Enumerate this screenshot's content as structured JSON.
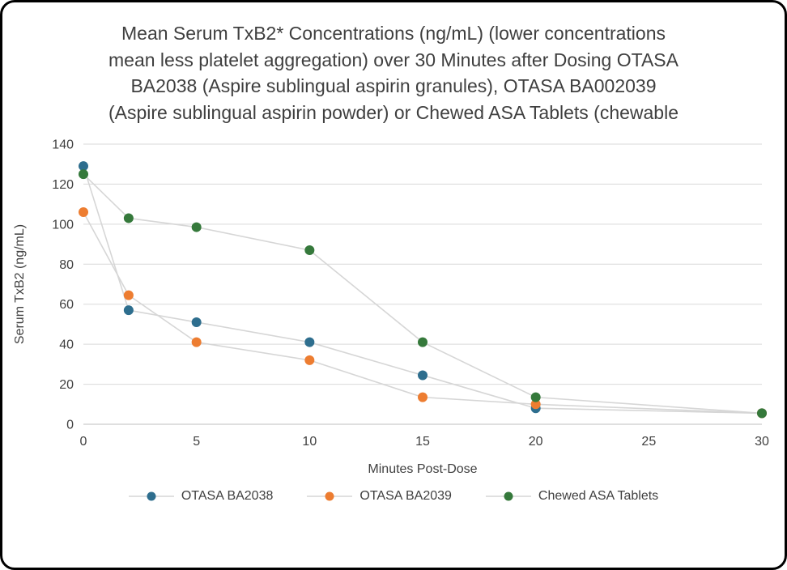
{
  "frame": {
    "background": "#ffffff",
    "border_color": "#000000"
  },
  "title": "Mean Serum TxB2* Concentrations (ng/mL) (lower concentrations mean less platelet aggregation) over 30 Minutes after Dosing OTASA BA2038 (Aspire sublingual aspirin granules), OTASA BA002039 (Aspire sublingual aspirin powder) or Chewed ASA Tablets (chewable",
  "chart_data": {
    "type": "scatter",
    "x": [
      0,
      2,
      5,
      10,
      15,
      20,
      30
    ],
    "series": [
      {
        "name": "OTASA BA2038",
        "color": "#2e6e8e",
        "values": [
          129,
          57,
          51,
          41,
          24.5,
          8,
          5.5
        ]
      },
      {
        "name": "OTASA BA2039",
        "color": "#ed7d31",
        "values": [
          106,
          64.5,
          41,
          32,
          13.5,
          10,
          5.5
        ]
      },
      {
        "name": "Chewed ASA Tablets",
        "color": "#35793b",
        "values": [
          125,
          103,
          98.5,
          87,
          41,
          13.5,
          5.5
        ]
      }
    ],
    "xlabel": "Minutes Post-Dose",
    "ylabel": "Serum TxB2 (ng/mL)",
    "xlim": [
      0,
      30
    ],
    "ylim": [
      0,
      140
    ],
    "x_ticks": [
      0,
      5,
      10,
      15,
      20,
      25,
      30
    ],
    "y_ticks": [
      0,
      20,
      40,
      60,
      80,
      100,
      120,
      140
    ],
    "grid": true,
    "legend_position": "bottom",
    "grid_color": "#d9d9d9",
    "connector_color": "#d6d6d6",
    "axis_color": "#bfbfbf",
    "text_color": "#404040"
  }
}
